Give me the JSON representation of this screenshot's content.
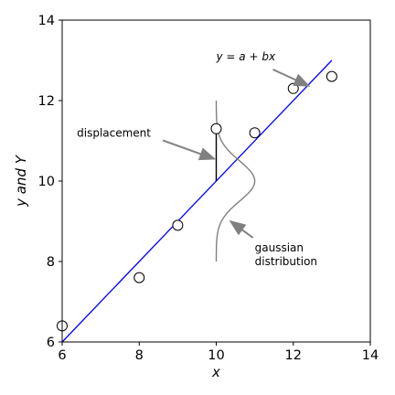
{
  "chart_data": {
    "type": "scatter",
    "xlabel": "x",
    "ylabel": "y and Y",
    "xlim": [
      6,
      14
    ],
    "ylim": [
      6,
      14
    ],
    "xticks": [
      6,
      8,
      10,
      12,
      14
    ],
    "yticks": [
      6,
      8,
      10,
      12,
      14
    ],
    "grid": false,
    "points": [
      {
        "x": 6,
        "y": 6.4
      },
      {
        "x": 8,
        "y": 7.6
      },
      {
        "x": 9,
        "y": 8.9
      },
      {
        "x": 10,
        "y": 11.3
      },
      {
        "x": 11,
        "y": 11.2
      },
      {
        "x": 12,
        "y": 12.3
      },
      {
        "x": 13,
        "y": 12.6
      }
    ],
    "regression_line": {
      "x": [
        6,
        13
      ],
      "y": [
        6.0,
        13.0
      ],
      "color": "#0000ff",
      "label": "y = a + bx"
    },
    "displacement": {
      "x": 10,
      "y_from": 10.0,
      "y_to": 11.3,
      "label": "displacement"
    },
    "gaussian": {
      "center_x": 10,
      "center_y": 10,
      "y_from": 8,
      "y_to": 12,
      "peak_dx": 1.0,
      "label_line1": "gaussian",
      "label_line2": "distribution",
      "color": "#808080"
    },
    "annotations": [
      {
        "text_key": "displacement",
        "text_at": [
          7.0,
          11.1
        ],
        "arrow_to": [
          10.0,
          10.55
        ]
      },
      {
        "text_key": "regression",
        "text_at": [
          10.0,
          13.0
        ],
        "arrow_to": [
          12.5,
          12.5
        ]
      },
      {
        "text_key": "gaussian",
        "text_at": [
          11.0,
          8.25
        ],
        "arrow_to": [
          10.37,
          9.0
        ]
      }
    ]
  }
}
